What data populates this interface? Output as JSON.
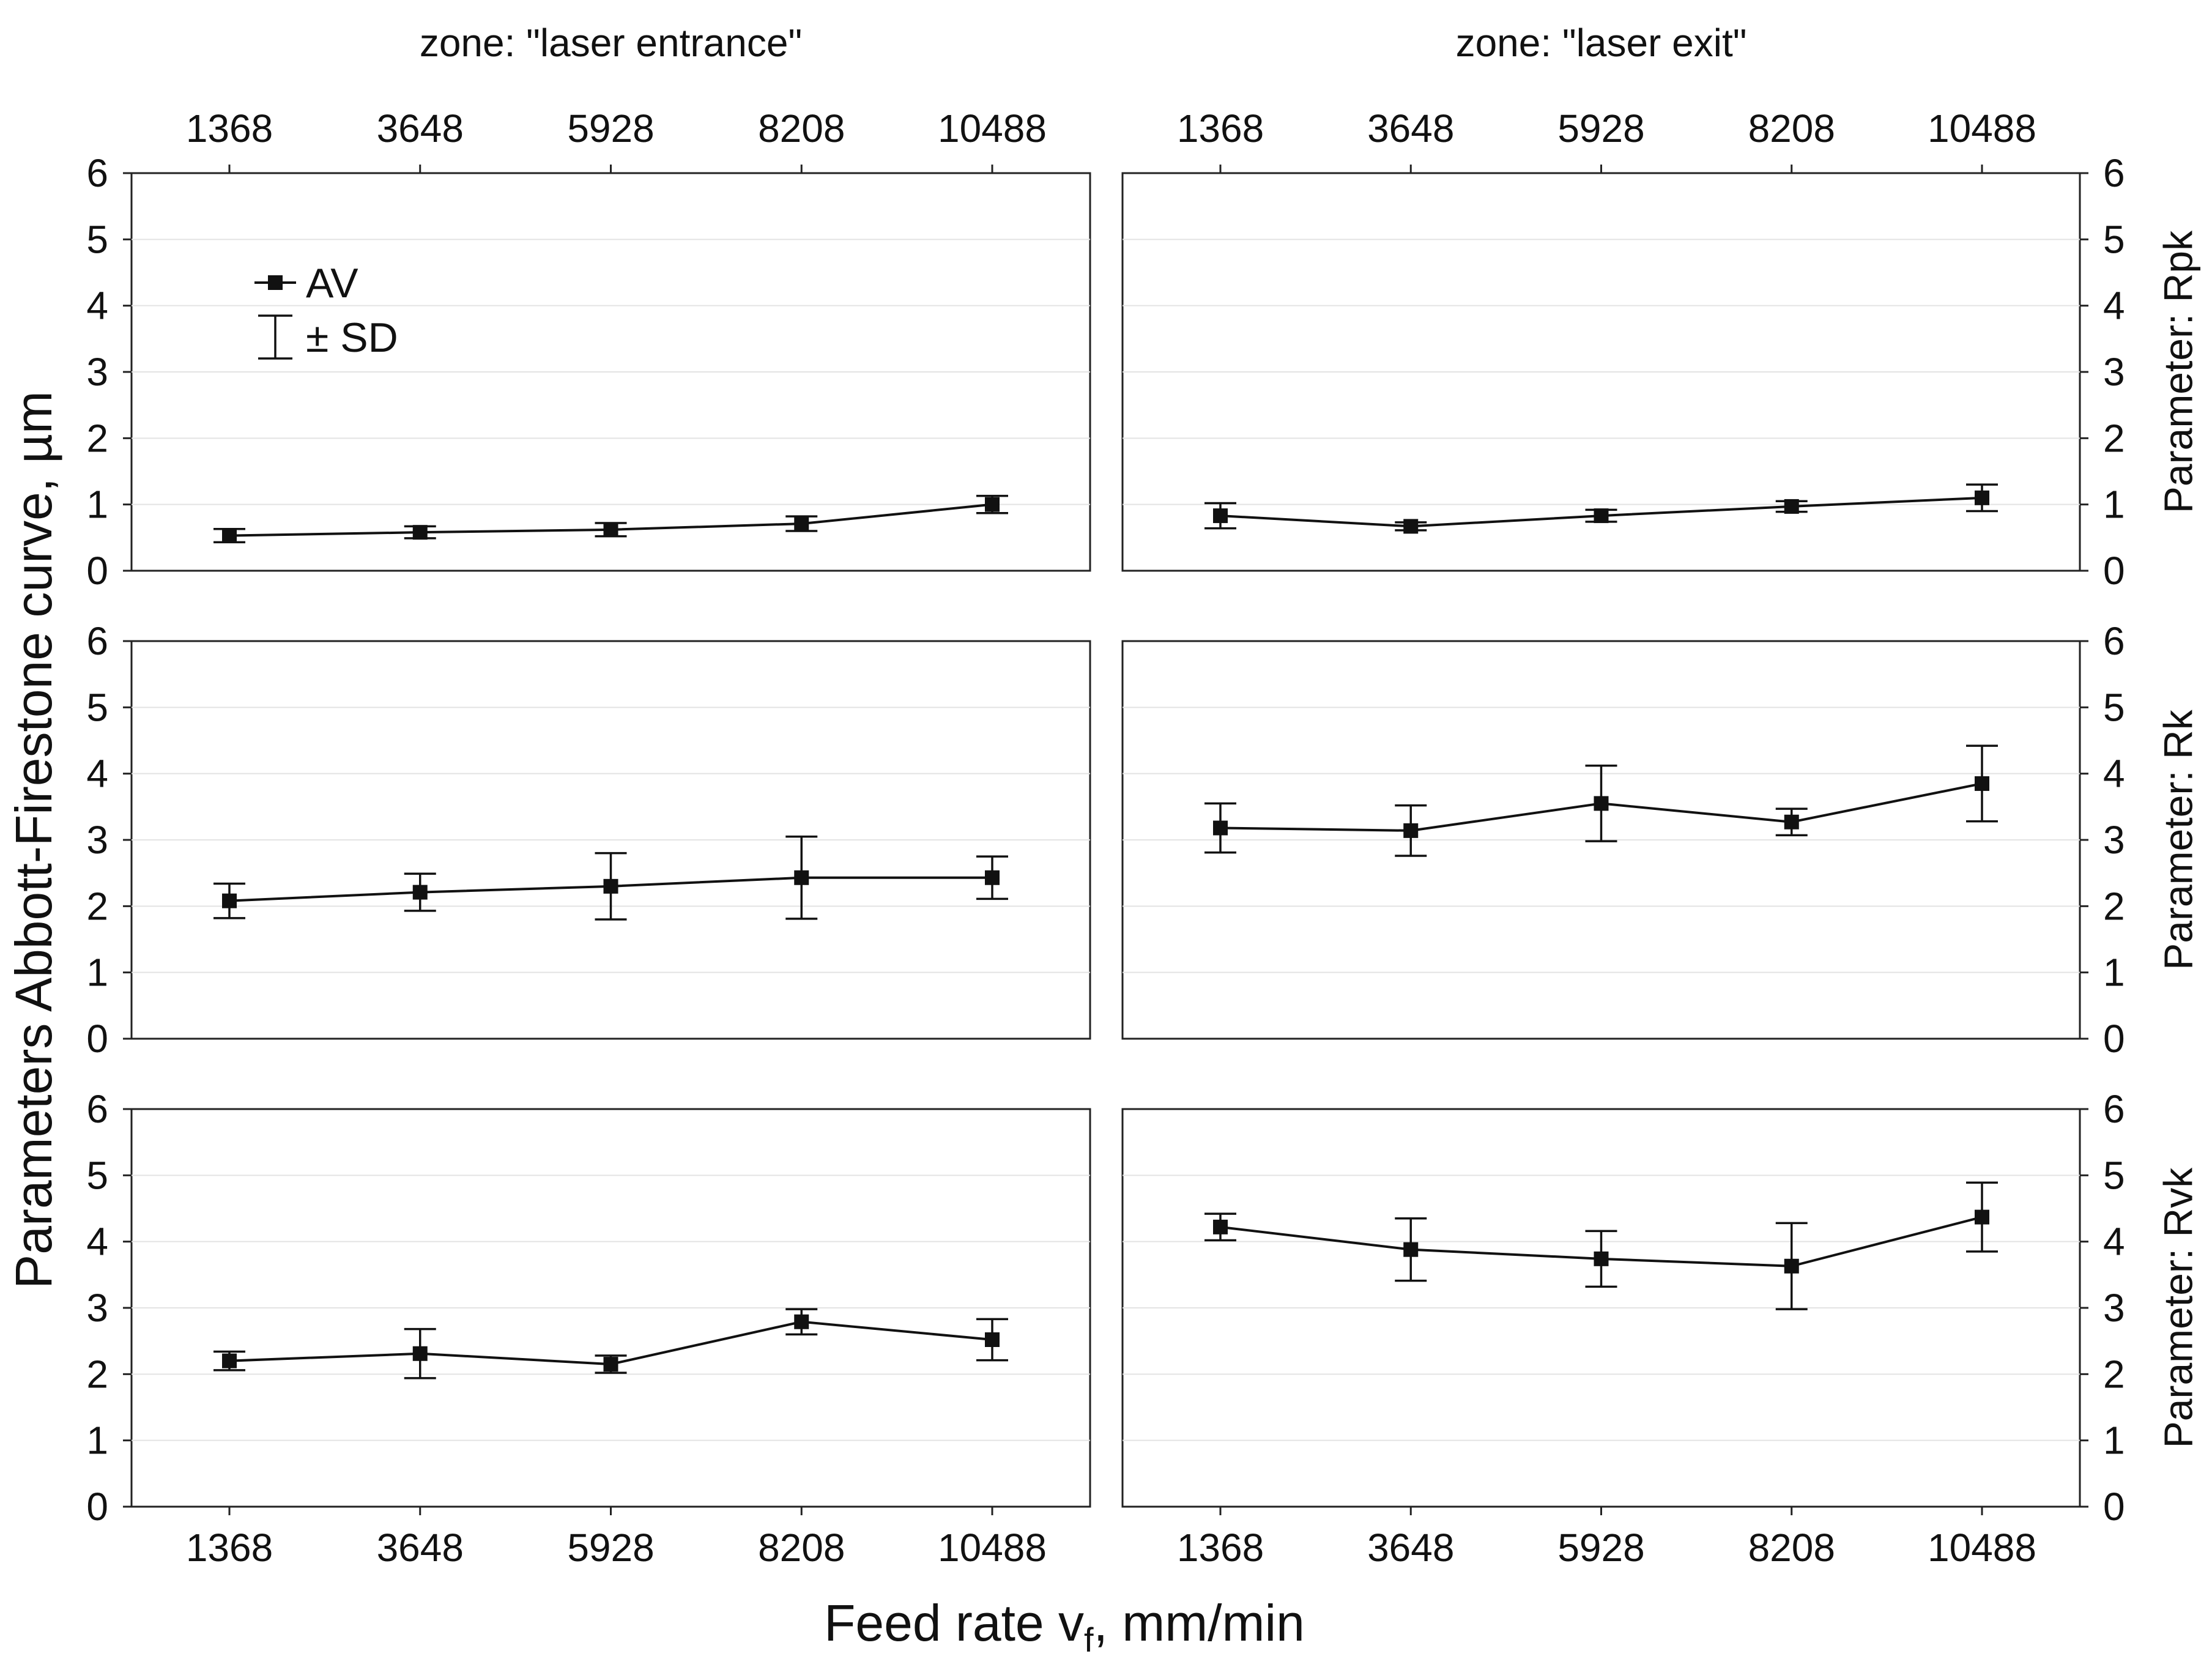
{
  "chart_data": {
    "type": "line",
    "xlabel": "Feed rate v",
    "xlabel_subscript": "f",
    "xlabel_suffix": ", mm/min",
    "ylabel": "Parameters Abbott-Firestone curve, µm",
    "categories": [
      "1368",
      "3648",
      "5928",
      "8208",
      "10488"
    ],
    "ylim": [
      0,
      6
    ],
    "yticks": [
      "0",
      "1",
      "2",
      "3",
      "4",
      "5",
      "6"
    ],
    "grid": true,
    "legend": {
      "position": "top-left of first panel",
      "entries": [
        {
          "symbol": "line-square-marker",
          "label": "AV"
        },
        {
          "symbol": "error-bar",
          "label": "± SD"
        }
      ]
    },
    "columns": [
      {
        "title": "zone: \"laser entrance\""
      },
      {
        "title": "zone: \"laser exit\""
      }
    ],
    "rows": [
      {
        "label": "Parameter: Rpk"
      },
      {
        "label": "Parameter: Rk"
      },
      {
        "label": "Parameter: Rvk"
      }
    ],
    "panels": [
      {
        "row": 0,
        "col": 0,
        "series": "AV",
        "values": [
          0.53,
          0.58,
          0.62,
          0.71,
          1.0
        ],
        "sd": [
          0.1,
          0.09,
          0.1,
          0.11,
          0.13
        ]
      },
      {
        "row": 0,
        "col": 1,
        "series": "AV",
        "values": [
          0.83,
          0.67,
          0.83,
          0.97,
          1.1
        ],
        "sd": [
          0.19,
          0.06,
          0.09,
          0.08,
          0.2
        ]
      },
      {
        "row": 1,
        "col": 0,
        "series": "AV",
        "values": [
          2.08,
          2.21,
          2.3,
          2.43,
          2.43
        ],
        "sd": [
          0.26,
          0.28,
          0.5,
          0.62,
          0.32
        ]
      },
      {
        "row": 1,
        "col": 1,
        "series": "AV",
        "values": [
          3.18,
          3.14,
          3.55,
          3.27,
          3.85
        ],
        "sd": [
          0.37,
          0.38,
          0.57,
          0.2,
          0.57
        ]
      },
      {
        "row": 2,
        "col": 0,
        "series": "AV",
        "values": [
          2.2,
          2.31,
          2.15,
          2.79,
          2.52
        ],
        "sd": [
          0.14,
          0.37,
          0.13,
          0.19,
          0.31
        ]
      },
      {
        "row": 2,
        "col": 1,
        "series": "AV",
        "values": [
          4.22,
          3.88,
          3.74,
          3.63,
          4.37
        ],
        "sd": [
          0.2,
          0.47,
          0.42,
          0.65,
          0.52
        ]
      }
    ]
  }
}
